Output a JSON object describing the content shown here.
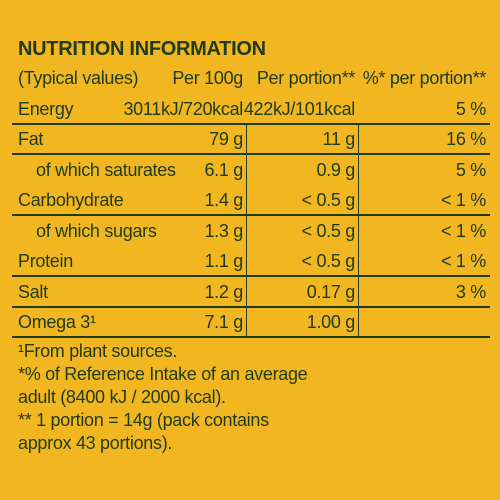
{
  "title": "NUTRITION INFORMATION",
  "table": {
    "header": [
      "(Typical values)",
      "Per 100g",
      "Per portion**",
      "%* per  portion**"
    ],
    "rows": [
      [
        "Energy",
        "3011kJ/720kcal",
        "422kJ/101kcal",
        "5 %"
      ],
      [
        "Fat",
        "79 g",
        "11 g",
        "16 %"
      ],
      [
        "of which saturates",
        "6.1 g",
        "0.9 g",
        "5 %"
      ],
      [
        "Carbohydrate",
        "1.4 g",
        "< 0.5 g",
        "< 1 %"
      ],
      [
        "of which sugars",
        "1.3 g",
        "< 0.5 g",
        "< 1 %"
      ],
      [
        "Protein",
        "1.1 g",
        "< 0.5 g",
        "< 1 %"
      ],
      [
        "Salt",
        "1.2 g",
        "0.17 g",
        "3 %"
      ],
      [
        "Omega 3¹",
        "7.1 g",
        "1.00 g"
      ]
    ]
  },
  "footnotes": [
    "¹From plant sources.",
    "*% of Reference Intake of an average",
    "adult (8400 kJ / 2000 kcal).",
    "** 1 portion = 14g (pack contains",
    "approx 43 portions)."
  ]
}
